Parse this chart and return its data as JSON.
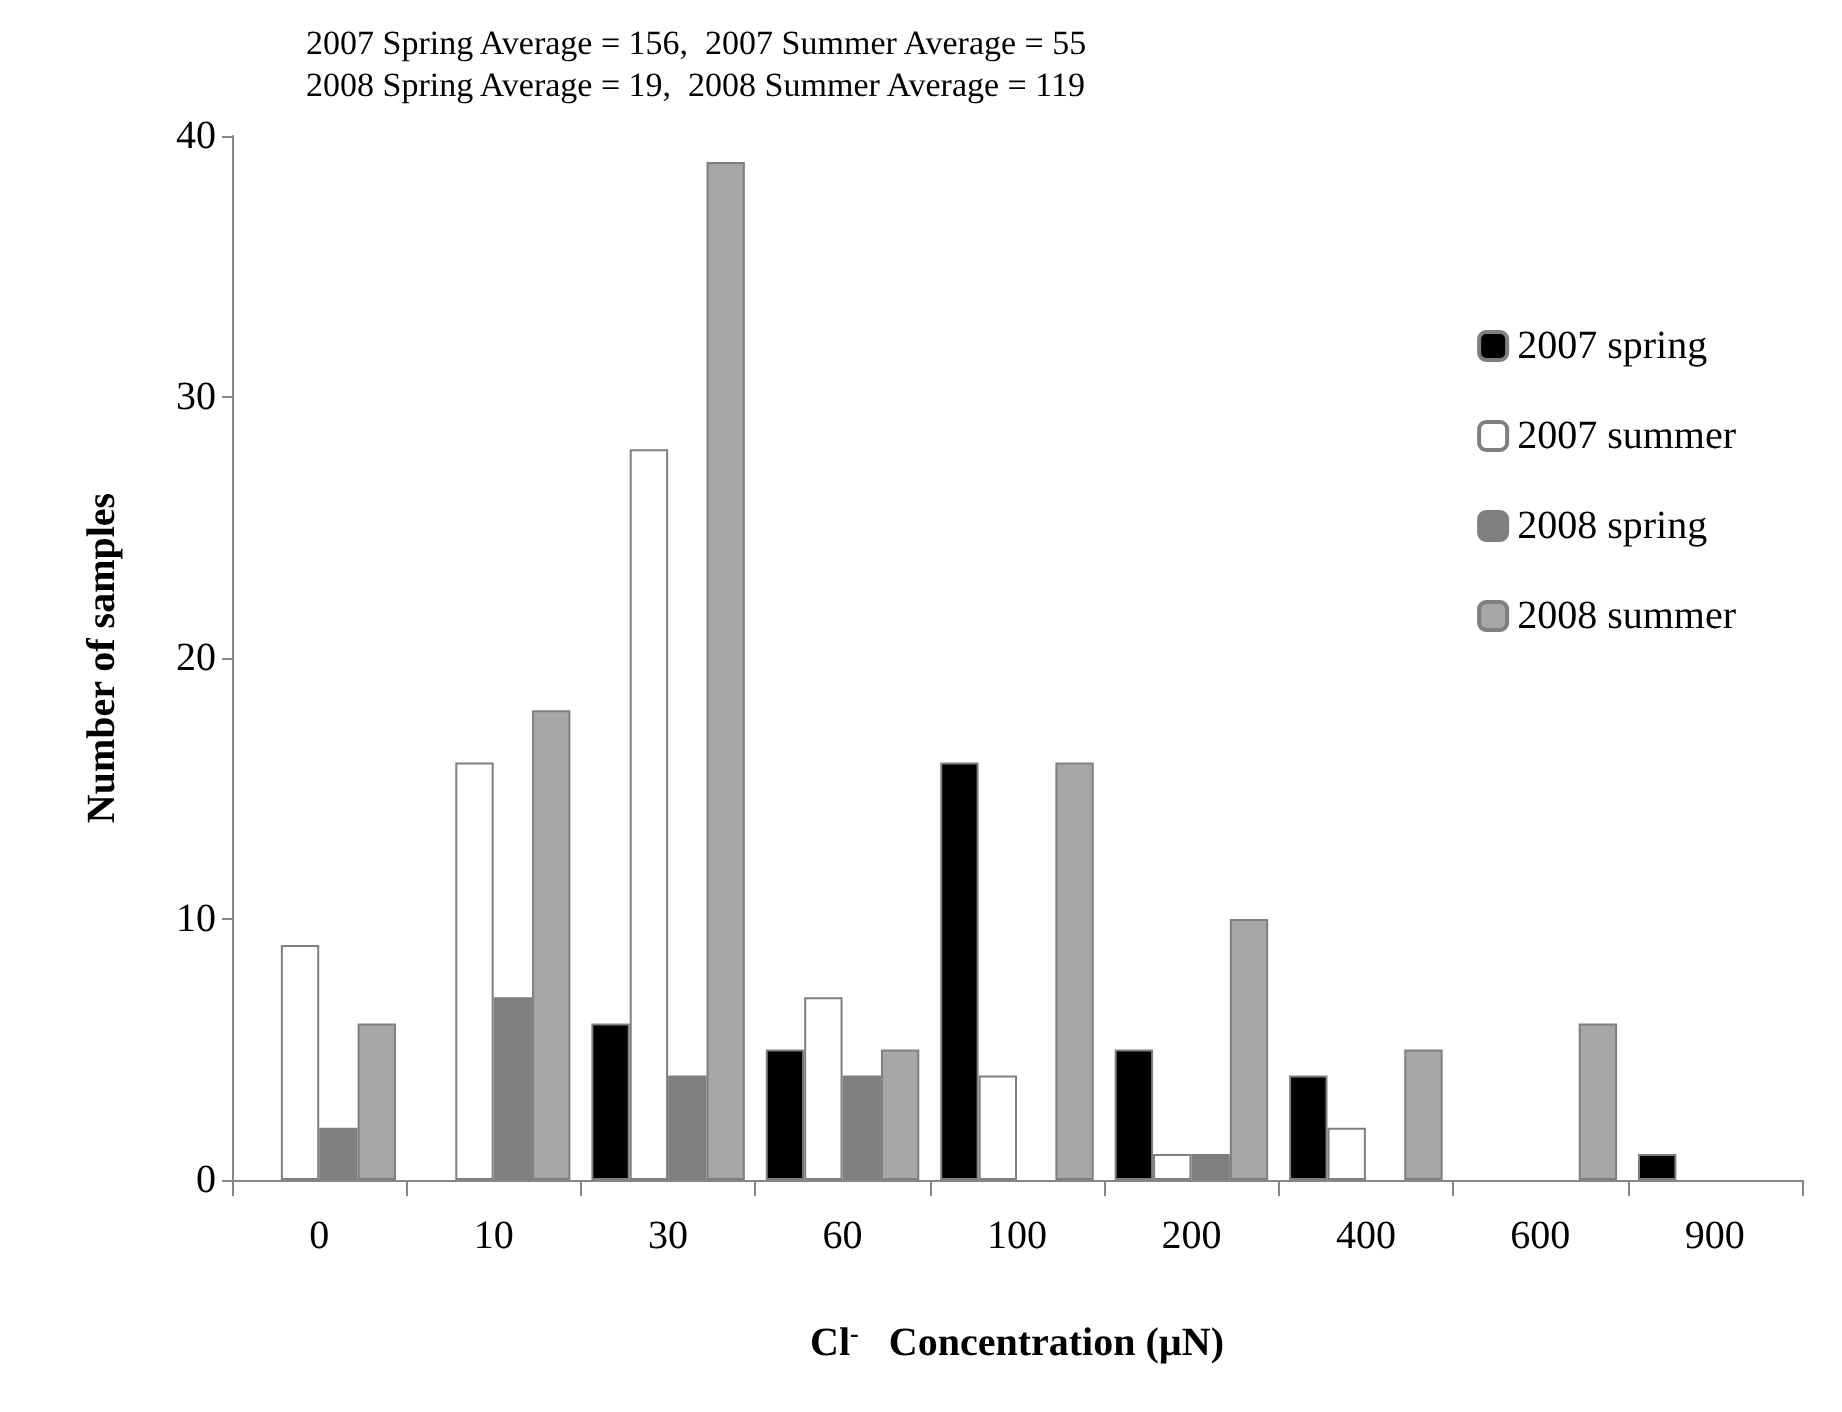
{
  "chart_data": {
    "type": "bar",
    "title": "2007 Spring Average = 156,  2007 Summer Average = 55",
    "subtitle": "2008 Spring Average = 19,  2008 Summer Average = 119",
    "xlabel": "Cl$^{-}$   Concentration (µN)",
    "ylabel": "Number of samples",
    "categories": [
      "0",
      "10",
      "30",
      "60",
      "100",
      "200",
      "400",
      "600",
      "900"
    ],
    "series": [
      {
        "name": "2007 spring",
        "color": "#000000",
        "values": [
          null,
          null,
          6,
          5,
          16,
          5,
          4,
          null,
          1
        ]
      },
      {
        "name": "2007 summer",
        "color": "#ffffff",
        "values": [
          9,
          16,
          28,
          7,
          4,
          1,
          2,
          null,
          null
        ]
      },
      {
        "name": "2008 spring",
        "color": "#7f7f7f",
        "values": [
          2,
          7,
          4,
          4,
          null,
          1,
          null,
          null,
          null
        ]
      },
      {
        "name": "2008 summer",
        "color": "#a6a6a6",
        "values": [
          6,
          18,
          39,
          5,
          16,
          10,
          5,
          6,
          null
        ]
      }
    ],
    "ylim": [
      0,
      40
    ],
    "yticks": [
      0,
      10,
      20,
      30,
      40
    ],
    "grid": false,
    "legend": "top right"
  }
}
